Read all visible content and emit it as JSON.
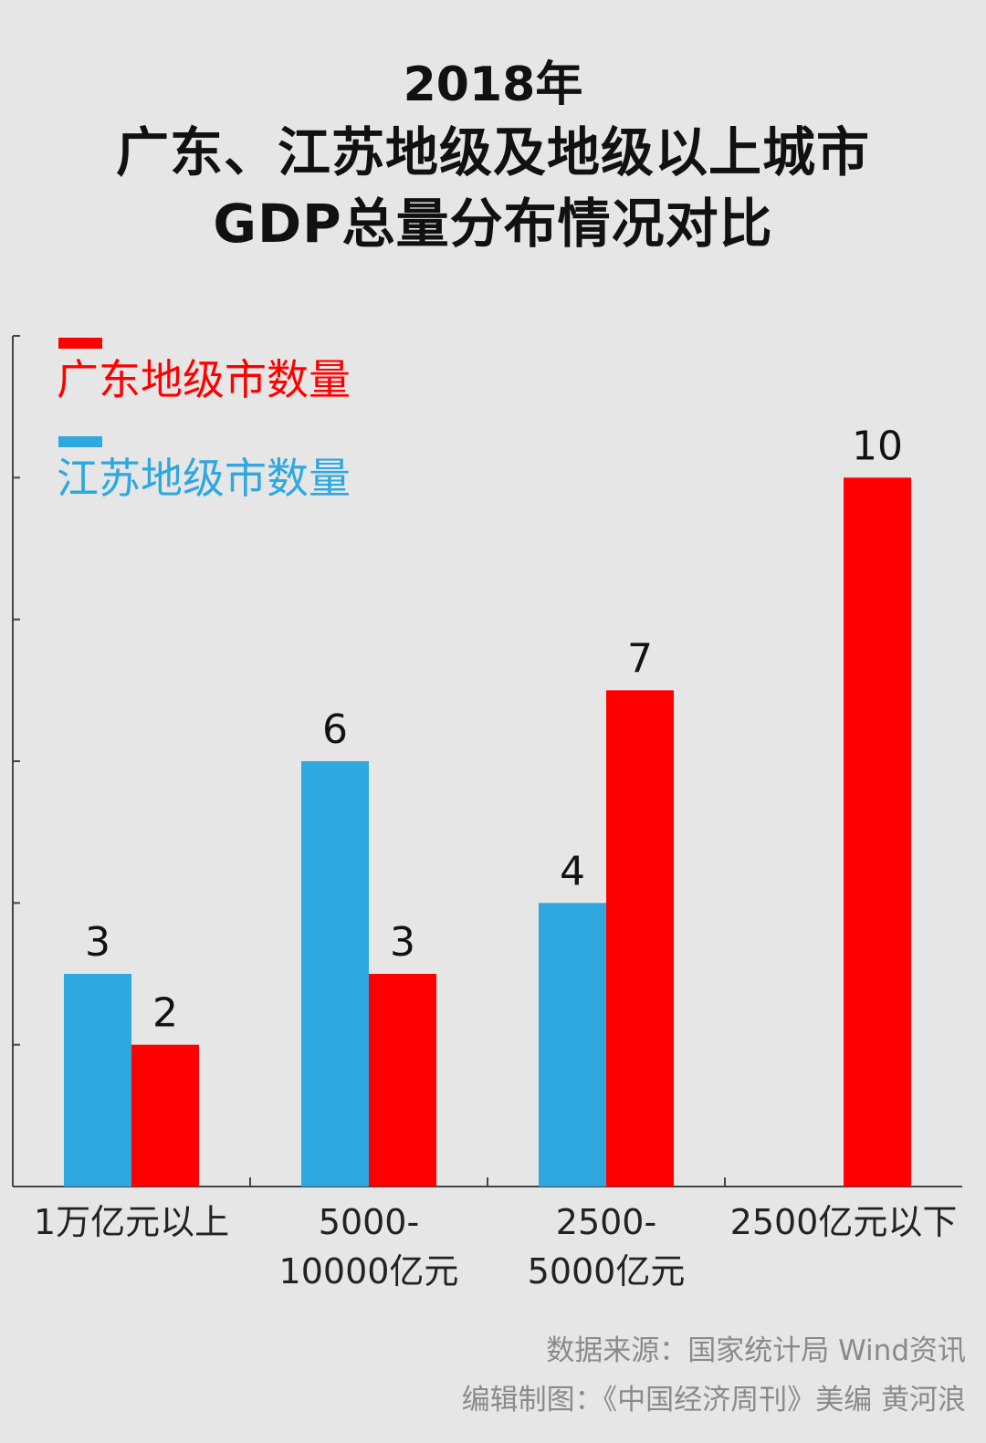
{
  "title": {
    "line1": "2018年",
    "line2": "广东、江苏地级及地级以上城市",
    "line3": "GDP总量分布情况对比"
  },
  "colors": {
    "guangdong": "#ff0000",
    "jiangsu": "#2ea8df",
    "background": "#e6e6e6",
    "axis": "#444444",
    "footer_text": "#8a8a8a"
  },
  "chart_data": {
    "type": "bar",
    "categories": [
      [
        "1万亿元以上"
      ],
      [
        "5000-",
        "10000亿元"
      ],
      [
        "2500-",
        "5000亿元"
      ],
      [
        "2500亿元以下"
      ]
    ],
    "series": [
      {
        "name": "江苏地级市数量",
        "color": "#2ea8df",
        "values": [
          3,
          6,
          4,
          null
        ]
      },
      {
        "name": "广东地级市数量",
        "color": "#ff0000",
        "values": [
          2,
          3,
          7,
          10
        ]
      }
    ],
    "ylim": [
      0,
      12
    ],
    "yticks": [
      0,
      2,
      4,
      6,
      8,
      10,
      12
    ],
    "legend_position": "top-left",
    "grid": false
  },
  "legend": [
    {
      "label": "广东地级市数量",
      "color": "#ff0000"
    },
    {
      "label": "江苏地级市数量",
      "color": "#2ea8df"
    }
  ],
  "footer": {
    "source": "数据来源：国家统计局  Wind资讯",
    "credit": "编辑制图：《中国经济周刊》美编 黄河浪"
  }
}
